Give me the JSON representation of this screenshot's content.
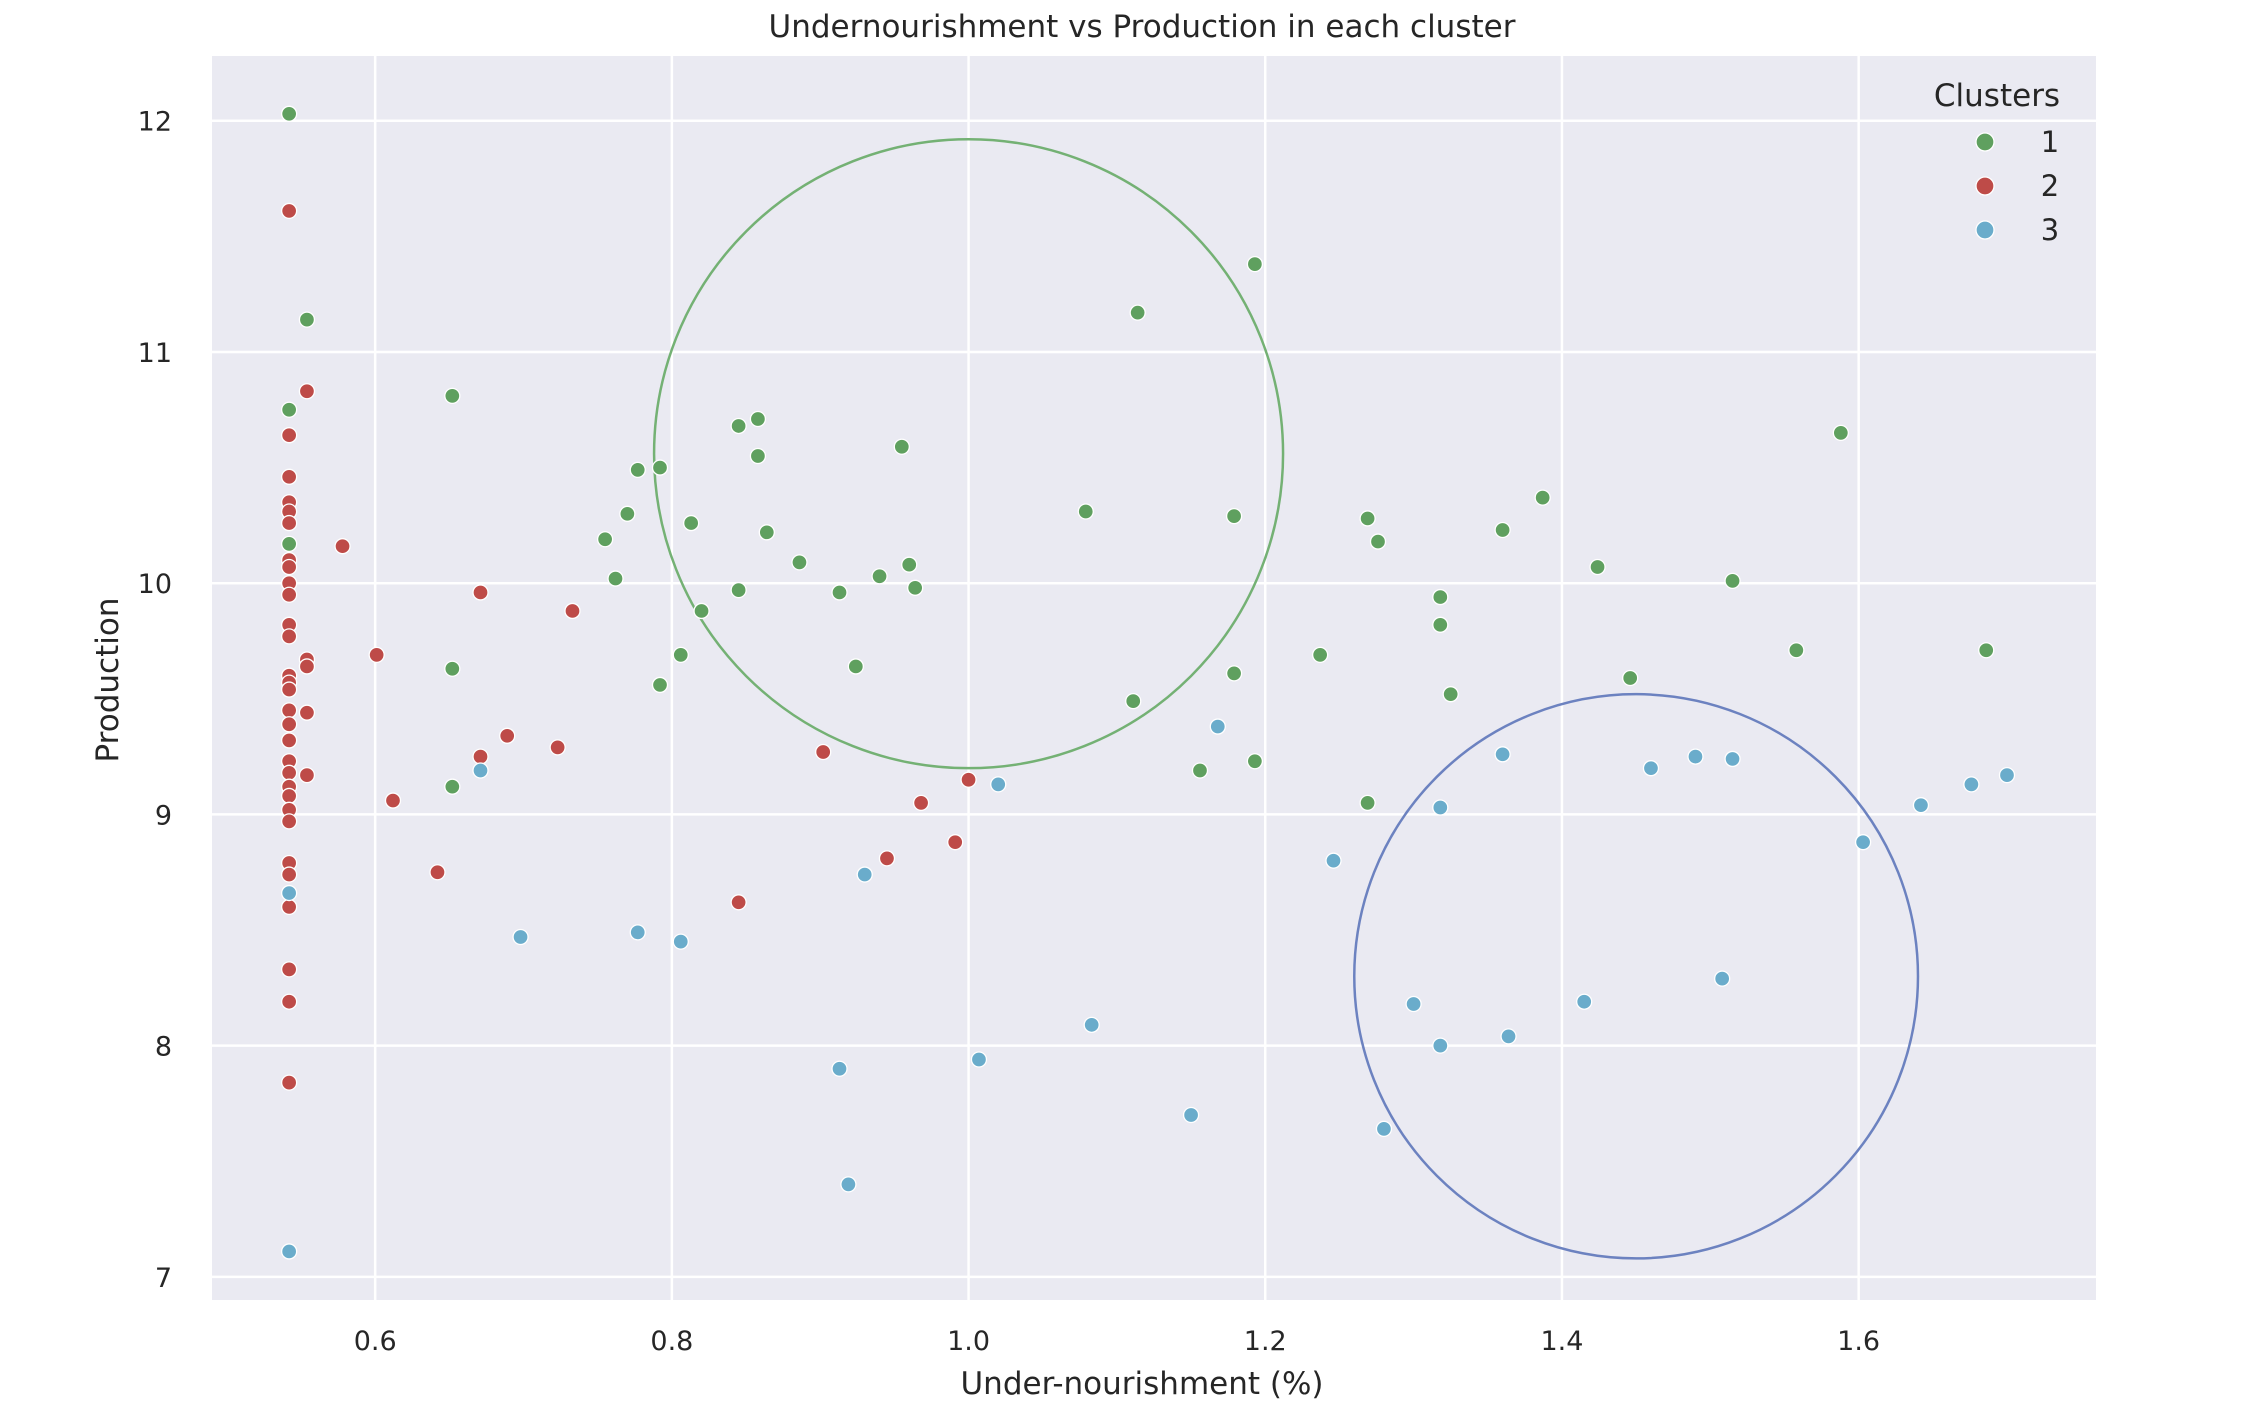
{
  "chart_data": {
    "type": "scatter",
    "title": "Undernourishment vs Production in each cluster",
    "xlabel": "Under-nourishment (%)",
    "ylabel": "Production",
    "xlim": [
      0.49,
      1.76
    ],
    "ylim": [
      6.9,
      12.28
    ],
    "xticks": [
      {
        "value": 0.6,
        "label": "0.6"
      },
      {
        "value": 0.8,
        "label": "0.8"
      },
      {
        "value": 1.0,
        "label": "1.0"
      },
      {
        "value": 1.2,
        "label": "1.2"
      },
      {
        "value": 1.4,
        "label": "1.4"
      },
      {
        "value": 1.6,
        "label": "1.6"
      }
    ],
    "yticks": [
      {
        "value": 7,
        "label": "7"
      },
      {
        "value": 8,
        "label": "8"
      },
      {
        "value": 9,
        "label": "9"
      },
      {
        "value": 10,
        "label": "10"
      },
      {
        "value": 11,
        "label": "11"
      },
      {
        "value": 12,
        "label": "12"
      }
    ],
    "grid": true,
    "background_color": "#eaeaf2",
    "legend": {
      "title": "Clusters",
      "placement": "top-right",
      "entries": [
        {
          "label": "1",
          "color": "#5fa05f"
        },
        {
          "label": "2",
          "color": "#be4b48"
        },
        {
          "label": "3",
          "color": "#6aaccb"
        }
      ]
    },
    "series": [
      {
        "name": "1",
        "color": "#5fa05f",
        "points": [
          [
            0.542,
            12.03
          ],
          [
            0.554,
            11.14
          ],
          [
            0.542,
            10.75
          ],
          [
            0.652,
            10.81
          ],
          [
            0.542,
            10.17
          ],
          [
            0.652,
            9.63
          ],
          [
            0.652,
            9.12
          ],
          [
            0.755,
            10.19
          ],
          [
            0.762,
            10.02
          ],
          [
            0.77,
            10.3
          ],
          [
            0.777,
            10.49
          ],
          [
            0.792,
            10.5
          ],
          [
            0.792,
            9.56
          ],
          [
            0.806,
            9.69
          ],
          [
            0.813,
            10.26
          ],
          [
            0.82,
            9.88
          ],
          [
            0.845,
            10.68
          ],
          [
            0.845,
            9.97
          ],
          [
            0.858,
            10.71
          ],
          [
            0.858,
            10.55
          ],
          [
            0.864,
            10.22
          ],
          [
            0.886,
            10.09
          ],
          [
            0.913,
            9.96
          ],
          [
            0.924,
            9.64
          ],
          [
            0.94,
            10.03
          ],
          [
            0.955,
            10.59
          ],
          [
            0.96,
            10.08
          ],
          [
            0.964,
            9.98
          ],
          [
            1.079,
            10.31
          ],
          [
            1.111,
            9.49
          ],
          [
            1.114,
            11.17
          ],
          [
            1.156,
            9.19
          ],
          [
            1.179,
            10.29
          ],
          [
            1.179,
            9.61
          ],
          [
            1.193,
            11.38
          ],
          [
            1.193,
            9.23
          ],
          [
            1.237,
            9.69
          ],
          [
            1.269,
            10.28
          ],
          [
            1.269,
            9.05
          ],
          [
            1.276,
            10.18
          ],
          [
            1.318,
            9.94
          ],
          [
            1.318,
            9.82
          ],
          [
            1.325,
            9.52
          ],
          [
            1.36,
            10.23
          ],
          [
            1.387,
            10.37
          ],
          [
            1.424,
            10.07
          ],
          [
            1.446,
            9.59
          ],
          [
            1.515,
            10.01
          ],
          [
            1.558,
            9.71
          ],
          [
            1.588,
            10.65
          ],
          [
            1.686,
            9.71
          ]
        ]
      },
      {
        "name": "2",
        "color": "#be4b48",
        "points": [
          [
            0.542,
            11.61
          ],
          [
            0.554,
            10.83
          ],
          [
            0.542,
            10.64
          ],
          [
            0.542,
            10.46
          ],
          [
            0.542,
            10.35
          ],
          [
            0.542,
            10.31
          ],
          [
            0.542,
            10.26
          ],
          [
            0.578,
            10.16
          ],
          [
            0.542,
            10.1
          ],
          [
            0.542,
            10.07
          ],
          [
            0.542,
            10.0
          ],
          [
            0.542,
            9.95
          ],
          [
            0.542,
            9.82
          ],
          [
            0.542,
            9.77
          ],
          [
            0.601,
            9.69
          ],
          [
            0.554,
            9.67
          ],
          [
            0.554,
            9.64
          ],
          [
            0.542,
            9.6
          ],
          [
            0.542,
            9.57
          ],
          [
            0.542,
            9.54
          ],
          [
            0.542,
            9.45
          ],
          [
            0.554,
            9.44
          ],
          [
            0.542,
            9.39
          ],
          [
            0.542,
            9.32
          ],
          [
            0.542,
            9.23
          ],
          [
            0.542,
            9.18
          ],
          [
            0.554,
            9.17
          ],
          [
            0.542,
            9.12
          ],
          [
            0.542,
            9.08
          ],
          [
            0.542,
            9.02
          ],
          [
            0.542,
            8.97
          ],
          [
            0.542,
            8.79
          ],
          [
            0.542,
            8.74
          ],
          [
            0.542,
            8.6
          ],
          [
            0.542,
            8.33
          ],
          [
            0.542,
            8.19
          ],
          [
            0.542,
            7.84
          ],
          [
            0.612,
            9.06
          ],
          [
            0.642,
            8.75
          ],
          [
            0.671,
            9.96
          ],
          [
            0.671,
            9.25
          ],
          [
            0.689,
            9.34
          ],
          [
            0.723,
            9.29
          ],
          [
            0.733,
            9.88
          ],
          [
            0.845,
            8.62
          ],
          [
            0.902,
            9.27
          ],
          [
            0.945,
            8.81
          ],
          [
            0.968,
            9.05
          ],
          [
            0.991,
            8.88
          ],
          [
            1.0,
            9.15
          ]
        ]
      },
      {
        "name": "3",
        "color": "#6aaccb",
        "points": [
          [
            0.542,
            8.66
          ],
          [
            0.542,
            7.11
          ],
          [
            0.671,
            9.19
          ],
          [
            0.698,
            8.47
          ],
          [
            0.777,
            8.49
          ],
          [
            0.806,
            8.45
          ],
          [
            0.913,
            7.9
          ],
          [
            0.919,
            7.4
          ],
          [
            0.93,
            8.74
          ],
          [
            1.007,
            7.94
          ],
          [
            1.02,
            9.13
          ],
          [
            1.083,
            8.09
          ],
          [
            1.15,
            7.7
          ],
          [
            1.168,
            9.38
          ],
          [
            1.246,
            8.8
          ],
          [
            1.28,
            7.64
          ],
          [
            1.3,
            8.18
          ],
          [
            1.318,
            9.03
          ],
          [
            1.318,
            8.0
          ],
          [
            1.36,
            9.26
          ],
          [
            1.364,
            8.04
          ],
          [
            1.415,
            8.19
          ],
          [
            1.46,
            9.2
          ],
          [
            1.49,
            9.25
          ],
          [
            1.508,
            8.29
          ],
          [
            1.515,
            9.24
          ],
          [
            1.603,
            8.88
          ],
          [
            1.642,
            9.04
          ],
          [
            1.676,
            9.13
          ],
          [
            1.7,
            9.17
          ]
        ]
      }
    ],
    "annotations": [
      {
        "shape": "circle",
        "cx": 1.0,
        "cy": 10.56,
        "rx": 0.212,
        "ry": 1.36,
        "color": "#74b174"
      },
      {
        "shape": "circle",
        "cx": 1.45,
        "cy": 8.3,
        "rx": 0.19,
        "ry": 1.22,
        "color": "#6c82c0"
      }
    ]
  }
}
